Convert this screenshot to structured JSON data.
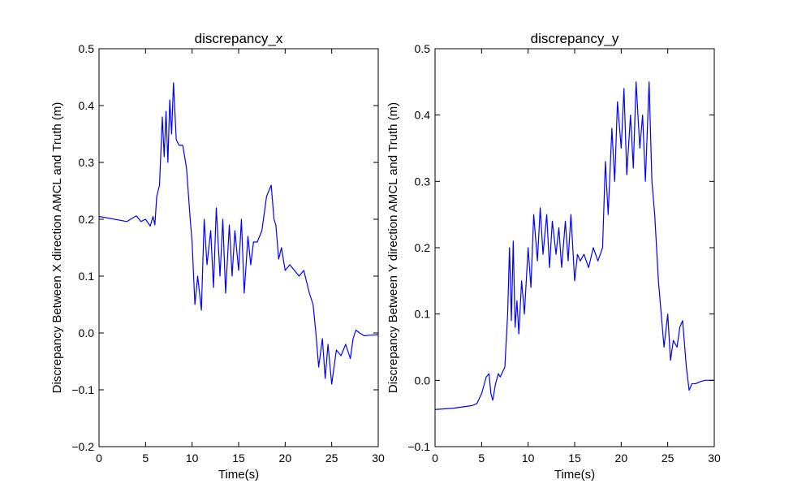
{
  "chart_data": [
    {
      "type": "line",
      "title": "discrepancy_x",
      "xlabel": "Time(s)",
      "ylabel": "Discrepancy Between X direction AMCL and Truth (m)",
      "xlim": [
        0,
        30
      ],
      "ylim": [
        -0.2,
        0.5
      ],
      "xticks": [
        0,
        5,
        10,
        15,
        20,
        25,
        30
      ],
      "xtick_labels": [
        "0",
        "5",
        "10",
        "15",
        "20",
        "25",
        "30"
      ],
      "yticks": [
        -0.2,
        -0.1,
        0.0,
        0.1,
        0.2,
        0.3,
        0.4,
        0.5
      ],
      "ytick_labels": [
        "−0.2",
        "−0.1",
        "0.0",
        "0.1",
        "0.2",
        "0.3",
        "0.4",
        "0.5"
      ],
      "grid": false,
      "series": [
        {
          "color": "#0000ff",
          "x": [
            0,
            3.0,
            4.0,
            4.5,
            5.0,
            5.5,
            5.8,
            6.0,
            6.2,
            6.5,
            6.8,
            7.0,
            7.2,
            7.4,
            7.6,
            7.8,
            8.0,
            8.3,
            8.6,
            9.0,
            9.4,
            9.8,
            10.0,
            10.3,
            10.6,
            11.0,
            11.3,
            11.6,
            12.0,
            12.3,
            12.6,
            13.0,
            13.3,
            13.6,
            14.0,
            14.3,
            14.6,
            15.0,
            15.3,
            15.6,
            16.0,
            16.3,
            16.6,
            17.0,
            17.5,
            18.0,
            18.5,
            18.8,
            19.0,
            19.3,
            19.6,
            20.0,
            20.5,
            21.0,
            21.5,
            22.0,
            22.3,
            22.6,
            23.0,
            23.3,
            23.6,
            24.0,
            24.3,
            24.6,
            25.0,
            25.5,
            26.0,
            26.5,
            27.0,
            27.3,
            27.6,
            28.0,
            28.5,
            29.0,
            30.0
          ],
          "y": [
            0.205,
            0.196,
            0.206,
            0.196,
            0.2,
            0.188,
            0.205,
            0.19,
            0.24,
            0.26,
            0.38,
            0.31,
            0.39,
            0.3,
            0.41,
            0.35,
            0.44,
            0.34,
            0.33,
            0.33,
            0.29,
            0.2,
            0.16,
            0.05,
            0.1,
            0.04,
            0.2,
            0.12,
            0.18,
            0.08,
            0.22,
            0.1,
            0.2,
            0.07,
            0.19,
            0.1,
            0.18,
            0.11,
            0.2,
            0.07,
            0.17,
            0.12,
            0.16,
            0.16,
            0.18,
            0.24,
            0.26,
            0.2,
            0.19,
            0.13,
            0.15,
            0.11,
            0.12,
            0.11,
            0.1,
            0.11,
            0.09,
            0.07,
            0.05,
            0.0,
            -0.06,
            -0.01,
            -0.08,
            -0.02,
            -0.09,
            -0.03,
            -0.04,
            -0.02,
            -0.045,
            -0.01,
            0.005,
            0.0,
            -0.005,
            -0.004,
            -0.003
          ]
        }
      ]
    },
    {
      "type": "line",
      "title": "discrepancy_y",
      "xlabel": "Time(s)",
      "ylabel": "Discrepancy Between Y direction AMCL and Truth (m)",
      "xlim": [
        0,
        30
      ],
      "ylim": [
        -0.1,
        0.5
      ],
      "xticks": [
        0,
        5,
        10,
        15,
        20,
        25,
        30
      ],
      "xtick_labels": [
        "0",
        "5",
        "10",
        "15",
        "20",
        "25",
        "30"
      ],
      "yticks": [
        -0.1,
        0.0,
        0.1,
        0.2,
        0.3,
        0.4,
        0.5
      ],
      "ytick_labels": [
        "−0.1",
        "0.0",
        "0.1",
        "0.2",
        "0.3",
        "0.4",
        "0.5"
      ],
      "grid": false,
      "series": [
        {
          "color": "#0000ff",
          "x": [
            0,
            2.0,
            4.0,
            4.5,
            5.0,
            5.5,
            5.8,
            6.0,
            6.2,
            6.5,
            6.8,
            7.0,
            7.5,
            7.8,
            8.0,
            8.2,
            8.4,
            8.6,
            8.8,
            9.0,
            9.3,
            9.6,
            10.0,
            10.3,
            10.6,
            11.0,
            11.3,
            11.6,
            12.0,
            12.3,
            12.6,
            13.0,
            13.3,
            13.6,
            14.0,
            14.3,
            14.6,
            15.0,
            15.3,
            15.6,
            16.0,
            16.5,
            17.0,
            17.5,
            18.0,
            18.3,
            18.6,
            19.0,
            19.3,
            19.6,
            20.0,
            20.3,
            20.6,
            21.0,
            21.3,
            21.6,
            22.0,
            22.3,
            22.6,
            23.0,
            23.3,
            23.6,
            24.0,
            24.3,
            24.6,
            25.0,
            25.3,
            25.6,
            26.0,
            26.3,
            26.6,
            27.0,
            27.3,
            27.6,
            28.0,
            28.5,
            29.0,
            30.0
          ],
          "y": [
            -0.044,
            -0.042,
            -0.038,
            -0.035,
            -0.02,
            0.005,
            0.01,
            -0.02,
            -0.03,
            -0.005,
            0.01,
            0.005,
            0.02,
            0.1,
            0.2,
            0.09,
            0.21,
            0.08,
            0.12,
            0.07,
            0.15,
            0.1,
            0.2,
            0.14,
            0.25,
            0.18,
            0.26,
            0.19,
            0.25,
            0.17,
            0.24,
            0.19,
            0.23,
            0.17,
            0.24,
            0.18,
            0.25,
            0.15,
            0.19,
            0.18,
            0.19,
            0.17,
            0.2,
            0.18,
            0.2,
            0.33,
            0.25,
            0.38,
            0.3,
            0.42,
            0.35,
            0.44,
            0.31,
            0.4,
            0.32,
            0.45,
            0.35,
            0.4,
            0.3,
            0.45,
            0.3,
            0.25,
            0.15,
            0.1,
            0.05,
            0.1,
            0.03,
            0.06,
            0.05,
            0.08,
            0.09,
            0.02,
            -0.015,
            -0.005,
            -0.005,
            -0.002,
            0.0,
            0.0
          ]
        }
      ]
    }
  ]
}
